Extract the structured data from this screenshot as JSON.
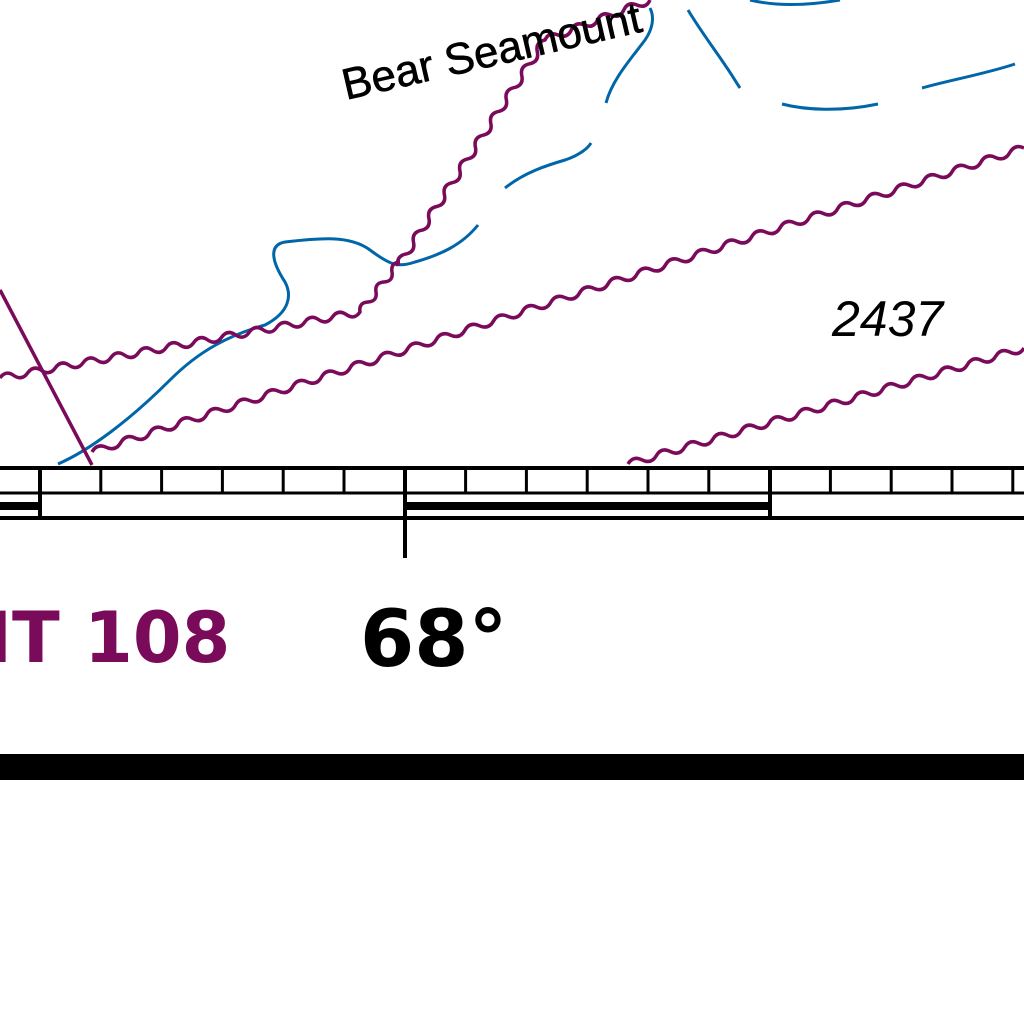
{
  "map": {
    "feature_name": "Bear Seamount",
    "sounding": "2437",
    "limit_label": "IT 108",
    "latitude_label": "68°"
  },
  "colors": {
    "contour": "#0066a8",
    "limit_line": "#7a0a5a",
    "text": "#000000",
    "border": "#000000",
    "background": "#ffffff"
  }
}
